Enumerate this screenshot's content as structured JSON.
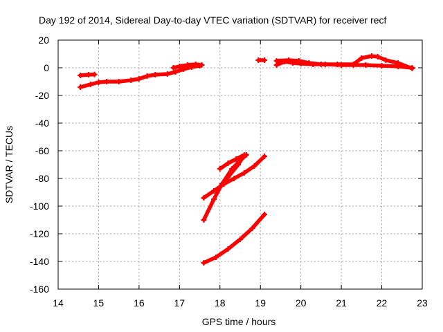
{
  "chart_data": {
    "type": "scatter",
    "title": "Day 192 of 2014, Sidereal Day-to-day VTEC variation (SDTVAR) for receiver recf",
    "xlabel": "GPS time / hours",
    "ylabel": "SDTVAR / TECUs",
    "xlim": [
      14,
      23
    ],
    "ylim": [
      -160,
      20
    ],
    "xticks": [
      14,
      15,
      16,
      17,
      18,
      19,
      20,
      21,
      22,
      23
    ],
    "yticks": [
      -160,
      -140,
      -120,
      -100,
      -80,
      -60,
      -40,
      -20,
      0,
      20
    ],
    "grid": true,
    "legend": "none",
    "color": "#ff0000",
    "series": [
      {
        "values": [
          [
            14.55,
            -5.5
          ],
          [
            14.75,
            -5.0
          ],
          [
            14.9,
            -4.8
          ]
        ]
      },
      {
        "values": [
          [
            14.55,
            -14
          ],
          [
            14.8,
            -12
          ],
          [
            15.0,
            -10.5
          ],
          [
            15.2,
            -10
          ],
          [
            15.5,
            -10
          ],
          [
            15.8,
            -9
          ],
          [
            16.0,
            -8
          ],
          [
            16.2,
            -6
          ],
          [
            16.4,
            -5
          ],
          [
            16.7,
            -4.5
          ],
          [
            16.9,
            -3
          ],
          [
            17.1,
            -1
          ],
          [
            17.3,
            0.5
          ],
          [
            17.5,
            1.5
          ]
        ]
      },
      {
        "values": [
          [
            16.85,
            0
          ],
          [
            17.0,
            1
          ],
          [
            17.2,
            2
          ],
          [
            17.4,
            2.5
          ],
          [
            17.55,
            2
          ]
        ]
      },
      {
        "values": [
          [
            18.95,
            5.5
          ],
          [
            19.1,
            5.5
          ]
        ]
      },
      {
        "values": [
          [
            19.4,
            2
          ],
          [
            19.6,
            4.5
          ],
          [
            19.8,
            3.5
          ],
          [
            20.0,
            3
          ],
          [
            20.3,
            2.5
          ],
          [
            20.6,
            2.5
          ],
          [
            21.0,
            2
          ],
          [
            21.3,
            2
          ],
          [
            21.6,
            2
          ],
          [
            22.0,
            1.5
          ],
          [
            22.4,
            1
          ],
          [
            22.75,
            0
          ]
        ]
      },
      {
        "values": [
          [
            19.4,
            5
          ],
          [
            19.7,
            5.5
          ],
          [
            19.95,
            5
          ],
          [
            20.2,
            3.5
          ],
          [
            20.5,
            2.5
          ],
          [
            20.9,
            2.5
          ],
          [
            21.3,
            2.5
          ],
          [
            21.5,
            7
          ],
          [
            21.75,
            8.5
          ],
          [
            21.9,
            8
          ],
          [
            22.1,
            5.5
          ],
          [
            22.4,
            3.5
          ],
          [
            22.75,
            -0.5
          ]
        ]
      },
      {
        "values": [
          [
            17.6,
            -141
          ],
          [
            17.9,
            -137
          ],
          [
            18.2,
            -131
          ],
          [
            18.5,
            -124
          ],
          [
            18.8,
            -116
          ],
          [
            19.1,
            -106
          ]
        ]
      },
      {
        "values": [
          [
            17.6,
            -110
          ],
          [
            17.85,
            -95
          ],
          [
            18.05,
            -84
          ],
          [
            18.3,
            -73
          ],
          [
            18.5,
            -67
          ],
          [
            18.65,
            -63
          ]
        ]
      },
      {
        "values": [
          [
            17.6,
            -94
          ],
          [
            17.85,
            -89
          ],
          [
            18.1,
            -84
          ],
          [
            18.35,
            -80
          ],
          [
            18.6,
            -76
          ],
          [
            18.85,
            -71
          ],
          [
            19.1,
            -64
          ]
        ]
      },
      {
        "values": [
          [
            18.0,
            -73
          ],
          [
            18.2,
            -69
          ],
          [
            18.4,
            -66
          ],
          [
            18.6,
            -63
          ],
          [
            18.45,
            -70
          ],
          [
            18.2,
            -79
          ],
          [
            17.95,
            -88
          ]
        ]
      }
    ]
  }
}
